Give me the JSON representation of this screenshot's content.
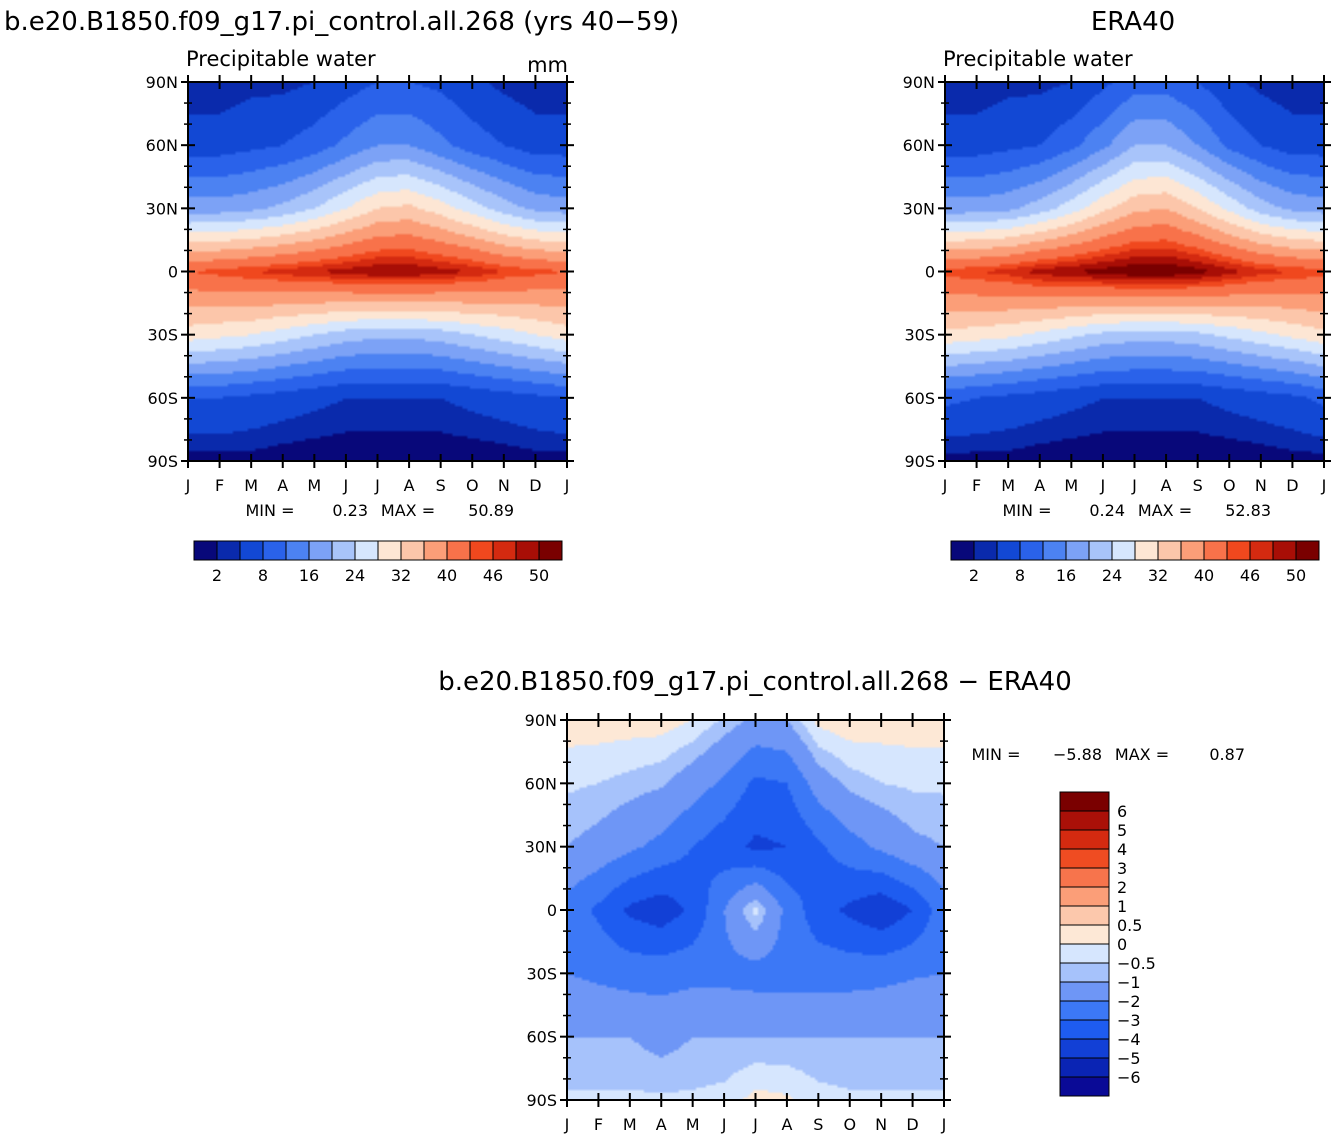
{
  "palette": {
    "seq": [
      "#08087a",
      "#0a2aac",
      "#1248d4",
      "#2a62ea",
      "#4c82f2",
      "#7ca2f6",
      "#a8c4fa",
      "#d6e6fd",
      "#fde6d4",
      "#fcc6aa",
      "#fb9e78",
      "#f8724a",
      "#f0481e",
      "#d42a10",
      "#a80e06",
      "#7a0000"
    ],
    "diff": [
      "#0a0a96",
      "#0a24b4",
      "#1240d6",
      "#1e5cf0",
      "#3c78f6",
      "#6e96f6",
      "#a6c2fb",
      "#d6e6fe",
      "#fde8d6",
      "#fcc8ac",
      "#fb9e78",
      "#f7744c",
      "#ef4c22",
      "#d42a10",
      "#aa1008",
      "#7a0000"
    ]
  },
  "chart_data": [
    {
      "type": "heatmap",
      "title": "b.e20.B1850.f09_g17.pi_control.all.268 (yrs 40−59)",
      "subtitle": "Precipitable water",
      "units": "mm",
      "x_ticks": [
        "J",
        "F",
        "M",
        "A",
        "M",
        "J",
        "J",
        "A",
        "S",
        "O",
        "N",
        "D",
        "J"
      ],
      "y_ticks": [
        "90N",
        "60N",
        "30N",
        "0",
        "30S",
        "60S",
        "90S"
      ],
      "min_label": "MIN =",
      "min": "0.23",
      "max_label": "MAX =",
      "max": "50.89",
      "colorbar_labels": [
        "2",
        "8",
        "16",
        "24",
        "32",
        "40",
        "46",
        "50"
      ],
      "latitudes": [
        90,
        60,
        30,
        0,
        -30,
        -60,
        -90
      ],
      "months": [
        "Jan",
        "Feb",
        "Mar",
        "Apr",
        "May",
        "Jun",
        "Jul",
        "Aug",
        "Sep",
        "Oct",
        "Nov",
        "Dec",
        "Jan"
      ],
      "values": [
        [
          2,
          2,
          3,
          3,
          4,
          6,
          8,
          8,
          7,
          5,
          3,
          2,
          2
        ],
        [
          6,
          6,
          7,
          8,
          10,
          13,
          16,
          16,
          13,
          10,
          8,
          6,
          6
        ],
        [
          18,
          18,
          19,
          21,
          24,
          28,
          32,
          33,
          30,
          26,
          22,
          19,
          18
        ],
        [
          44,
          45,
          46,
          47,
          48,
          49,
          50,
          50,
          49,
          48,
          46,
          45,
          44
        ],
        [
          30,
          29,
          28,
          26,
          24,
          22,
          21,
          21,
          22,
          24,
          26,
          28,
          30
        ],
        [
          8,
          8,
          7,
          6,
          5,
          4,
          4,
          4,
          4,
          5,
          6,
          7,
          8
        ],
        [
          1,
          1,
          1,
          0.5,
          0.3,
          0.3,
          0.3,
          0.3,
          0.3,
          0.3,
          0.5,
          1,
          1
        ]
      ],
      "contour_levels": [
        2,
        4,
        8,
        12,
        16,
        20,
        24,
        28,
        32,
        36,
        40,
        44,
        46,
        48,
        50
      ]
    },
    {
      "type": "heatmap",
      "title": "ERA40",
      "subtitle": "Precipitable water",
      "x_ticks": [
        "J",
        "F",
        "M",
        "A",
        "M",
        "J",
        "J",
        "A",
        "S",
        "O",
        "N",
        "D",
        "J"
      ],
      "y_ticks": [
        "90N",
        "60N",
        "30N",
        "0",
        "30S",
        "60S",
        "90S"
      ],
      "min_label": "MIN =",
      "min": "0.24",
      "max_label": "MAX =",
      "max": "52.83",
      "colorbar_labels": [
        "2",
        "8",
        "16",
        "24",
        "32",
        "40",
        "46",
        "50"
      ],
      "latitudes": [
        90,
        60,
        30,
        0,
        -30,
        -60,
        -90
      ],
      "months": [
        "Jan",
        "Feb",
        "Mar",
        "Apr",
        "May",
        "Jun",
        "Jul",
        "Aug",
        "Sep",
        "Oct",
        "Nov",
        "Dec",
        "Jan"
      ],
      "values": [
        [
          2,
          2,
          3,
          3,
          4,
          7,
          10,
          10,
          8,
          5,
          3,
          2,
          2
        ],
        [
          6,
          6,
          7,
          8,
          11,
          15,
          20,
          20,
          16,
          11,
          8,
          6,
          6
        ],
        [
          18,
          18,
          19,
          22,
          26,
          31,
          35,
          36,
          32,
          27,
          22,
          19,
          18
        ],
        [
          45,
          46,
          47,
          49,
          50,
          51,
          52,
          52,
          51,
          49,
          47,
          46,
          45
        ],
        [
          31,
          30,
          29,
          27,
          25,
          23,
          22,
          22,
          23,
          25,
          27,
          29,
          31
        ],
        [
          9,
          8,
          7,
          6,
          5,
          4,
          4,
          4,
          4,
          5,
          6,
          7,
          9
        ],
        [
          1,
          1,
          1,
          0.5,
          0.3,
          0.3,
          0.3,
          0.3,
          0.3,
          0.3,
          0.5,
          1,
          1
        ]
      ],
      "contour_levels": [
        2,
        4,
        8,
        12,
        16,
        20,
        24,
        28,
        32,
        36,
        40,
        44,
        46,
        48,
        50
      ]
    },
    {
      "type": "heatmap",
      "title": "b.e20.B1850.f09_g17.pi_control.all.268 − ERA40",
      "x_ticks": [
        "J",
        "F",
        "M",
        "A",
        "M",
        "J",
        "J",
        "A",
        "S",
        "O",
        "N",
        "D",
        "J"
      ],
      "y_ticks": [
        "90N",
        "60N",
        "30N",
        "0",
        "30S",
        "60S",
        "90S"
      ],
      "min_label": "MIN =",
      "min": "−5.88",
      "max_label": "MAX =",
      "max": "0.87",
      "colorbar_labels": [
        "6",
        "5",
        "4",
        "3",
        "2",
        "1",
        "0.5",
        "0",
        "−0.5",
        "−1",
        "−2",
        "−3",
        "−4",
        "−5",
        "−6"
      ],
      "latitudes": [
        90,
        60,
        30,
        0,
        -30,
        -60,
        -90
      ],
      "months": [
        "Jan",
        "Feb",
        "Mar",
        "Apr",
        "May",
        "Jun",
        "Jul",
        "Aug",
        "Sep",
        "Oct",
        "Nov",
        "Dec",
        "Jan"
      ],
      "values": [
        [
          0.3,
          0.3,
          0.3,
          0.3,
          0,
          -0.6,
          -1.2,
          -1,
          0.2,
          0.4,
          0.3,
          0.3,
          0.3
        ],
        [
          -0.4,
          -0.5,
          -0.7,
          -0.9,
          -1.5,
          -2.2,
          -3.2,
          -3,
          -1.5,
          -0.8,
          -0.5,
          -0.4,
          -0.4
        ],
        [
          -1,
          -1.3,
          -1.8,
          -2.3,
          -3,
          -3.6,
          -4.2,
          -4,
          -3.2,
          -2.4,
          -1.8,
          -1.2,
          -1
        ],
        [
          -2.4,
          -3.2,
          -4.2,
          -4.6,
          -3.8,
          -2,
          -0.3,
          -2.3,
          -3.6,
          -4.2,
          -4.8,
          -4,
          -2.4
        ],
        [
          -2,
          -2.2,
          -2.4,
          -2.4,
          -2.3,
          -2.3,
          -2.4,
          -2.4,
          -2.4,
          -2.4,
          -2.3,
          -2.1,
          -2
        ],
        [
          -1,
          -1,
          -1,
          -1.3,
          -1,
          -1,
          -1,
          -1,
          -1,
          -1,
          -1,
          -1,
          -1
        ],
        [
          -0.4,
          -0.4,
          -0.4,
          -0.4,
          -0.4,
          -0.3,
          0.2,
          0.1,
          -0.3,
          -0.4,
          -0.4,
          -0.4,
          -0.4
        ]
      ],
      "contour_levels": [
        -6,
        -5,
        -4,
        -3,
        -2,
        -1,
        -0.5,
        0,
        0.5,
        1,
        2,
        3,
        4,
        5,
        6
      ]
    }
  ]
}
